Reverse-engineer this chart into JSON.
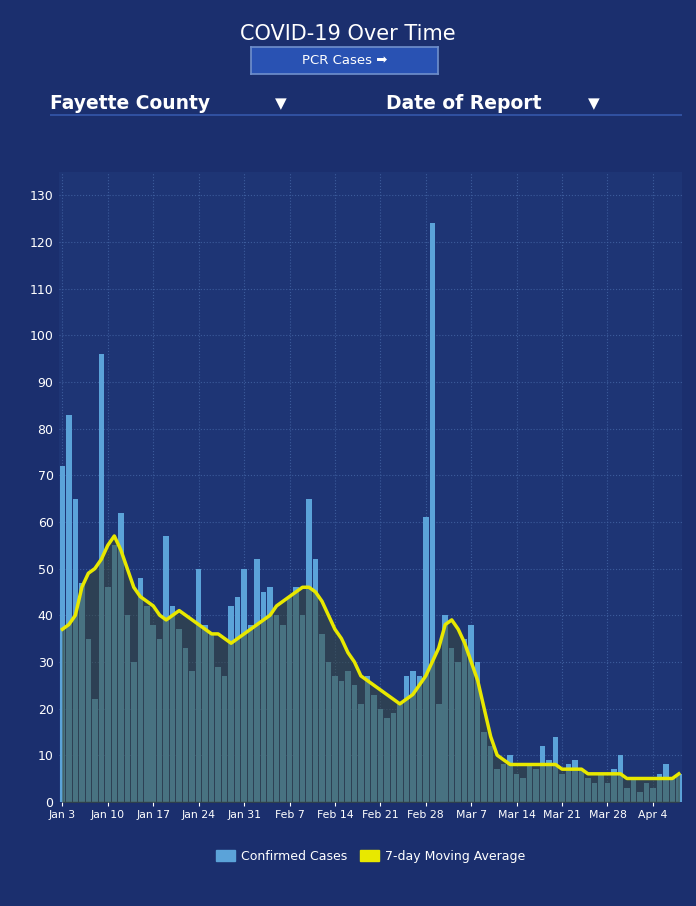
{
  "title": "COVID-19 Over Time",
  "pcr_label": "PCR Cases ➡",
  "filter_left": "Fayette County",
  "filter_right": "Date of Report",
  "background_color": "#1b2f6e",
  "plot_bg_color": "#1e3575",
  "grid_color": "#2d4a9a",
  "bar_color": "#5ba3d9",
  "ma_color": "#e8e800",
  "text_color": "#ffffff",
  "ylim": [
    0,
    135
  ],
  "yticks": [
    0,
    10,
    20,
    30,
    40,
    50,
    60,
    70,
    80,
    90,
    100,
    110,
    120,
    130
  ],
  "xtick_labels": [
    "Jan 3",
    "Jan 10",
    "Jan 17",
    "Jan 24",
    "Jan 31",
    "Feb 7",
    "Feb 14",
    "Feb 21",
    "Feb 28",
    "Mar 7",
    "Mar 14",
    "Mar 21",
    "Mar 28",
    "Apr 4"
  ],
  "confirmed_cases": [
    72,
    83,
    65,
    47,
    35,
    22,
    96,
    46,
    55,
    62,
    40,
    30,
    48,
    42,
    38,
    35,
    57,
    42,
    37,
    33,
    28,
    50,
    38,
    36,
    29,
    27,
    42,
    44,
    50,
    38,
    52,
    45,
    46,
    40,
    38,
    44,
    46,
    40,
    65,
    52,
    36,
    30,
    27,
    26,
    28,
    25,
    21,
    27,
    23,
    20,
    18,
    19,
    21,
    27,
    28,
    27,
    61,
    124,
    21,
    40,
    33,
    30,
    35,
    38,
    30,
    15,
    12,
    7,
    8,
    10,
    6,
    5,
    8,
    7,
    12,
    9,
    14,
    6,
    8,
    9,
    7,
    5,
    4,
    6,
    4,
    7,
    10,
    3,
    5,
    2,
    4,
    3,
    6,
    8,
    5,
    6
  ],
  "moving_avg": [
    37,
    38,
    40,
    46,
    49,
    50,
    52,
    55,
    57,
    54,
    50,
    46,
    44,
    43,
    42,
    40,
    39,
    40,
    41,
    40,
    39,
    38,
    37,
    36,
    36,
    35,
    34,
    35,
    36,
    37,
    38,
    39,
    40,
    42,
    43,
    44,
    45,
    46,
    46,
    45,
    43,
    40,
    37,
    35,
    32,
    30,
    27,
    26,
    25,
    24,
    23,
    22,
    21,
    22,
    23,
    25,
    27,
    30,
    33,
    38,
    39,
    37,
    34,
    30,
    26,
    20,
    14,
    10,
    9,
    8,
    8,
    8,
    8,
    8,
    8,
    8,
    8,
    7,
    7,
    7,
    7,
    6,
    6,
    6,
    6,
    6,
    6,
    5,
    5,
    5,
    5,
    5,
    5,
    5,
    5,
    6
  ],
  "xtick_positions": [
    0,
    7,
    14,
    21,
    28,
    35,
    42,
    49,
    56,
    63,
    70,
    77,
    84,
    91
  ],
  "btn_bg": "#2952b3",
  "btn_border": "#7090cc",
  "legend_bar_label": "Confirmed Cases",
  "legend_ma_label": "7-day Moving Average"
}
